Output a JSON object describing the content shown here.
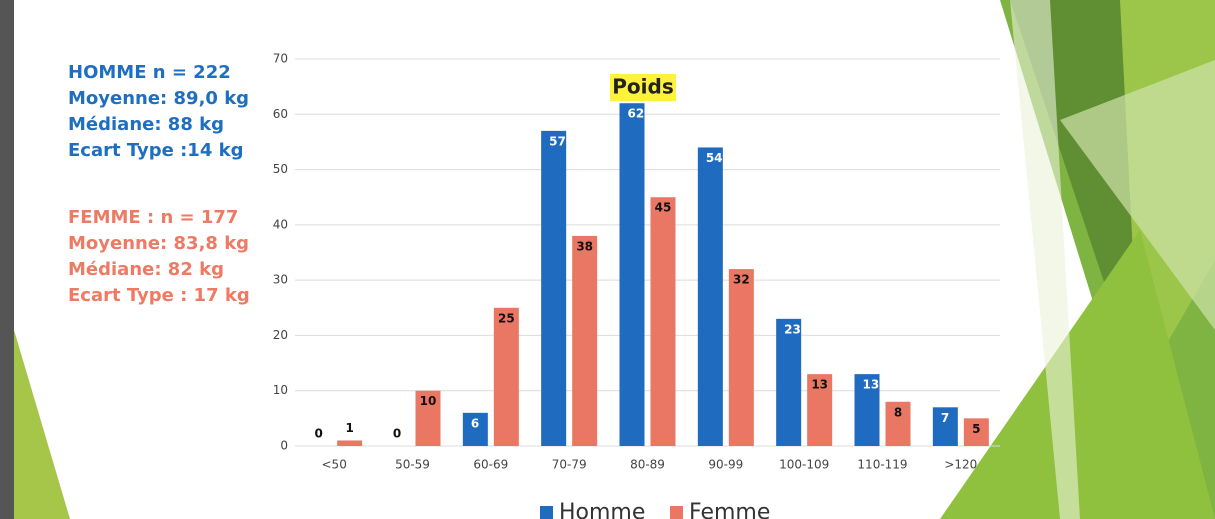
{
  "chart_data": {
    "type": "bar",
    "title": "Poids",
    "categories": [
      "<50",
      "50-59",
      "60-69",
      "70-79",
      "80-89",
      "90-99",
      "100-109",
      "110-119",
      ">120"
    ],
    "series": [
      {
        "name": "Homme",
        "color": "#1f6bbf",
        "values": [
          0,
          0,
          6,
          57,
          62,
          54,
          23,
          13,
          7
        ]
      },
      {
        "name": "Femme",
        "color": "#ea7664",
        "values": [
          1,
          10,
          25,
          38,
          45,
          32,
          13,
          8,
          5
        ]
      }
    ],
    "ylim": [
      0,
      70
    ],
    "yticks": [
      0,
      10,
      20,
      30,
      40,
      50,
      60,
      70
    ],
    "grid": true,
    "annotations": [
      {
        "color": "#1f6fc0",
        "lines": [
          "HOMME n = 222",
          "Moyenne: 89,0 kg",
          "Médiane: 88 kg",
          "Ecart Type :14 kg"
        ]
      },
      {
        "color": "#ef7a64",
        "lines": [
          "FEMME : n = 177",
          "Moyenne: 83,8 kg",
          "Médiane: 82 kg",
          "Ecart Type : 17 kg"
        ]
      }
    ]
  }
}
